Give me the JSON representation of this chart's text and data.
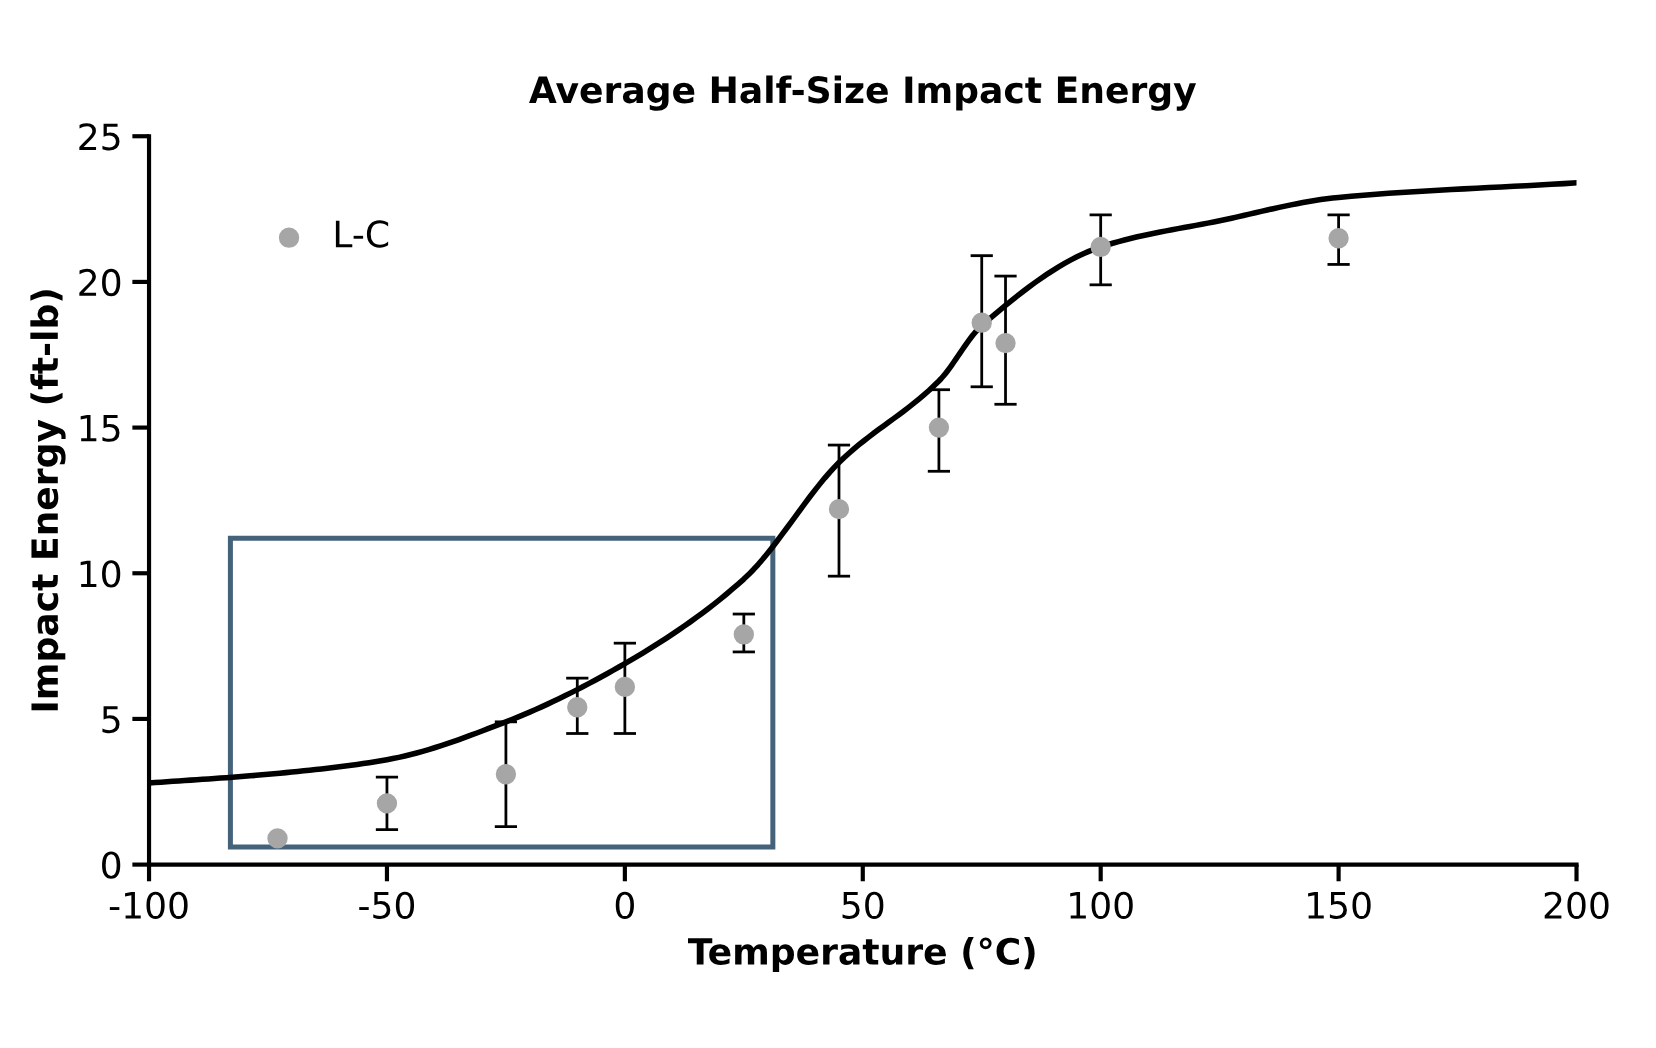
{
  "chart_data": {
    "type": "scatter",
    "title": "Average Half-Size Impact Energy",
    "xlabel": "Temperature (°C)",
    "ylabel": "Impact Energy (ft-lb)",
    "x": [
      -73,
      -50,
      -25,
      -10,
      0,
      25,
      45,
      66,
      75,
      80,
      100,
      150
    ],
    "series": [
      {
        "name": "L-C",
        "color": "#a6a6a6",
        "marker": "circle",
        "values": [
          0.9,
          2.1,
          3.1,
          5.4,
          6.1,
          7.9,
          12.2,
          15.0,
          18.6,
          17.9,
          21.2,
          21.5
        ],
        "errors": [
          null,
          [
            1.2,
            3.0
          ],
          [
            1.3,
            4.9
          ],
          [
            4.5,
            6.4
          ],
          [
            4.5,
            7.6
          ],
          [
            7.3,
            8.6
          ],
          [
            9.9,
            14.4
          ],
          [
            13.5,
            16.3
          ],
          [
            16.4,
            20.9
          ],
          [
            15.8,
            20.2
          ],
          [
            19.9,
            22.3
          ],
          [
            20.6,
            22.3
          ]
        ]
      },
      {
        "type": "line",
        "color": "#000000",
        "line_style": "solid",
        "x": [
          -100,
          -75,
          -50,
          -25,
          0,
          25,
          45,
          66,
          75,
          100,
          125,
          150,
          200
        ],
        "values": [
          2.8,
          3.1,
          3.6,
          4.9,
          6.9,
          9.8,
          13.8,
          16.6,
          18.5,
          21.2,
          22.1,
          22.9,
          23.4
        ]
      }
    ],
    "xlim": [
      -100,
      200
    ],
    "xticks": [
      -100,
      -50,
      0,
      50,
      100,
      150,
      200
    ],
    "ylim": [
      0,
      25
    ],
    "yticks": [
      0,
      5,
      10,
      15,
      20,
      25
    ],
    "grid": false,
    "legend": "top left"
  }
}
